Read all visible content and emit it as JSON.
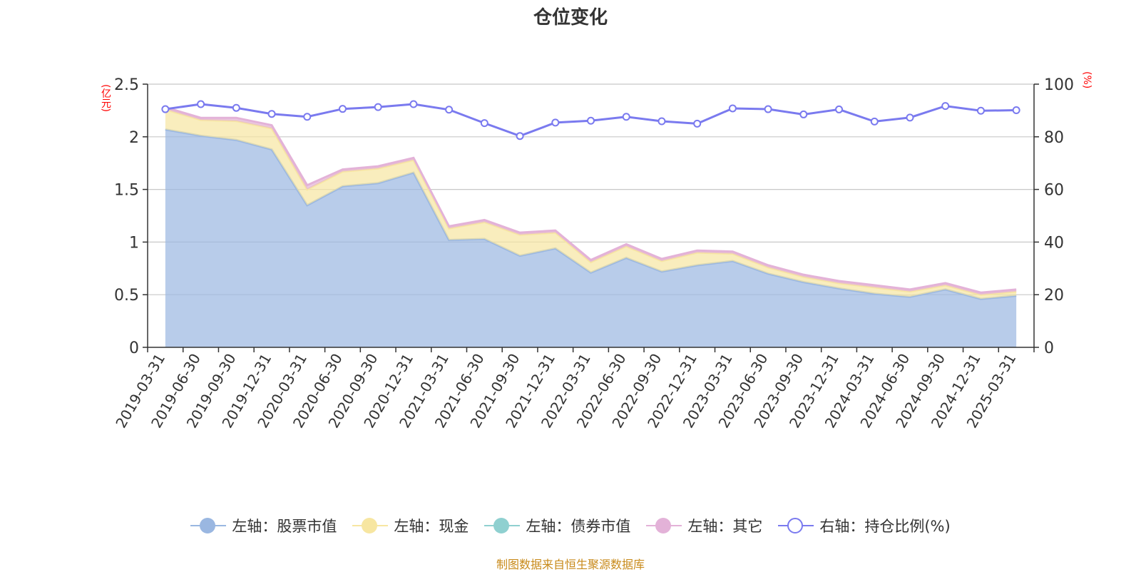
{
  "title": "仓位变化",
  "left_axis_unit": "(亿元)",
  "right_axis_unit": "(%)",
  "footer": "制图数据来自恒生聚源数据库",
  "colors": {
    "stock": "#9ab7e1",
    "cash": "#f7e6a1",
    "bond": "#8fd0d0",
    "other": "#e3b2d8",
    "ratio": "#7a7aef",
    "axis_unit": "#ff0000",
    "footer": "#c88a1a"
  },
  "legend": [
    {
      "key": "stock",
      "label": "左轴：股票市值",
      "color": "#9ab7e1",
      "hollow": false
    },
    {
      "key": "cash",
      "label": "左轴：现金",
      "color": "#f7e6a1",
      "hollow": false
    },
    {
      "key": "bond",
      "label": "左轴：债券市值",
      "color": "#8fd0d0",
      "hollow": false
    },
    {
      "key": "other",
      "label": "左轴：其它",
      "color": "#e3b2d8",
      "hollow": false
    },
    {
      "key": "ratio",
      "label": "右轴：持仓比例(%)",
      "color": "#7a7aef",
      "hollow": true
    }
  ],
  "chart_data": {
    "type": "area",
    "title": "仓位变化",
    "x": [
      "2019-03-31",
      "2019-06-30",
      "2019-09-30",
      "2019-12-31",
      "2020-03-31",
      "2020-06-30",
      "2020-09-30",
      "2020-12-31",
      "2021-03-31",
      "2021-06-30",
      "2021-09-30",
      "2021-12-31",
      "2022-03-31",
      "2022-06-30",
      "2022-09-30",
      "2022-12-31",
      "2023-03-31",
      "2023-06-30",
      "2023-09-30",
      "2023-12-31",
      "2024-03-31",
      "2024-06-30",
      "2024-09-30",
      "2024-12-31",
      "2025-03-31"
    ],
    "left_axis": {
      "ylim": [
        0,
        2.5
      ],
      "ticks": [
        0,
        0.5,
        1,
        1.5,
        2,
        2.5
      ],
      "tick_labels": [
        "0",
        "0.5",
        "1",
        "1.5",
        "2",
        "2.5"
      ]
    },
    "right_axis": {
      "ylim": [
        0,
        100
      ],
      "ticks": [
        0,
        20,
        40,
        60,
        80,
        100
      ],
      "tick_labels": [
        "0",
        "20",
        "40",
        "60",
        "80",
        "100"
      ]
    },
    "grid": true,
    "legend_position": "bottom",
    "series": [
      {
        "key": "stock",
        "name": "左轴：股票市值",
        "axis": "left",
        "stacked": true,
        "values": [
          2.07,
          2.01,
          1.97,
          1.88,
          1.35,
          1.53,
          1.56,
          1.66,
          1.02,
          1.03,
          0.87,
          0.94,
          0.71,
          0.85,
          0.72,
          0.78,
          0.82,
          0.7,
          0.62,
          0.56,
          0.51,
          0.48,
          0.55,
          0.46,
          0.49
        ]
      },
      {
        "key": "cash",
        "name": "左轴：现金",
        "axis": "left",
        "stacked": true,
        "values": [
          0.19,
          0.15,
          0.18,
          0.2,
          0.15,
          0.14,
          0.14,
          0.12,
          0.11,
          0.16,
          0.2,
          0.15,
          0.1,
          0.11,
          0.1,
          0.12,
          0.07,
          0.06,
          0.05,
          0.05,
          0.06,
          0.05,
          0.04,
          0.04,
          0.04
        ]
      },
      {
        "key": "bond",
        "name": "左轴：债券市值",
        "axis": "left",
        "stacked": true,
        "values": [
          0,
          0,
          0,
          0,
          0,
          0,
          0,
          0,
          0,
          0,
          0,
          0,
          0,
          0,
          0,
          0,
          0,
          0,
          0,
          0,
          0,
          0,
          0,
          0,
          0
        ]
      },
      {
        "key": "other",
        "name": "左轴：其它",
        "axis": "left",
        "stacked": true,
        "values": [
          0.02,
          0.02,
          0.03,
          0.03,
          0.04,
          0.02,
          0.02,
          0.02,
          0.02,
          0.02,
          0.02,
          0.02,
          0.02,
          0.02,
          0.02,
          0.02,
          0.02,
          0.02,
          0.02,
          0.02,
          0.02,
          0.02,
          0.02,
          0.02,
          0.02
        ]
      },
      {
        "key": "ratio",
        "name": "右轴：持仓比例(%)",
        "axis": "right",
        "stacked": false,
        "values": [
          90.5,
          92.4,
          91.0,
          88.7,
          87.6,
          90.6,
          91.3,
          92.4,
          90.3,
          85.2,
          80.3,
          85.4,
          86.1,
          87.6,
          85.9,
          85.0,
          90.8,
          90.5,
          88.5,
          90.4,
          85.8,
          87.3,
          91.7,
          89.9,
          90.1
        ]
      }
    ]
  }
}
